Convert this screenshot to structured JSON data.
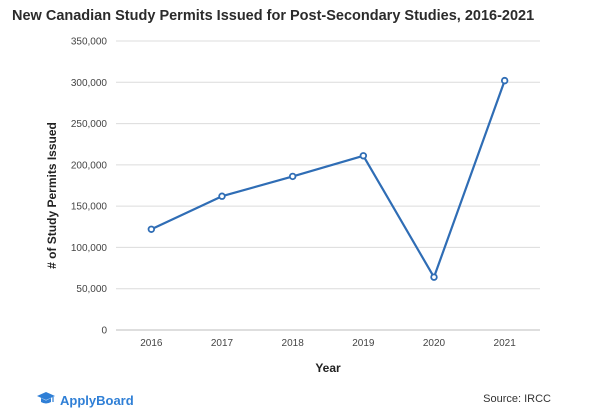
{
  "chart_data": {
    "type": "line",
    "title": "New Canadian Study Permits Issued for Post-Secondary Studies, 2016-2021",
    "xlabel": "Year",
    "ylabel": "# of Study Permits Issued",
    "x": [
      "2016",
      "2017",
      "2018",
      "2019",
      "2020",
      "2021"
    ],
    "values": [
      122000,
      162000,
      186000,
      211000,
      64000,
      302000
    ],
    "ylim": [
      0,
      350000
    ],
    "yticks": [
      0,
      50000,
      100000,
      150000,
      200000,
      250000,
      300000,
      350000
    ],
    "ytick_labels": [
      "0",
      "50,000",
      "100,000",
      "150,000",
      "200,000",
      "250,000",
      "300,000",
      "350,000"
    ],
    "grid": "horizontal",
    "line_color": "#2f6db5"
  },
  "footer": {
    "brand": "ApplyBoard",
    "source": "Source: IRCC",
    "brand_color": "#2f7fd6"
  }
}
